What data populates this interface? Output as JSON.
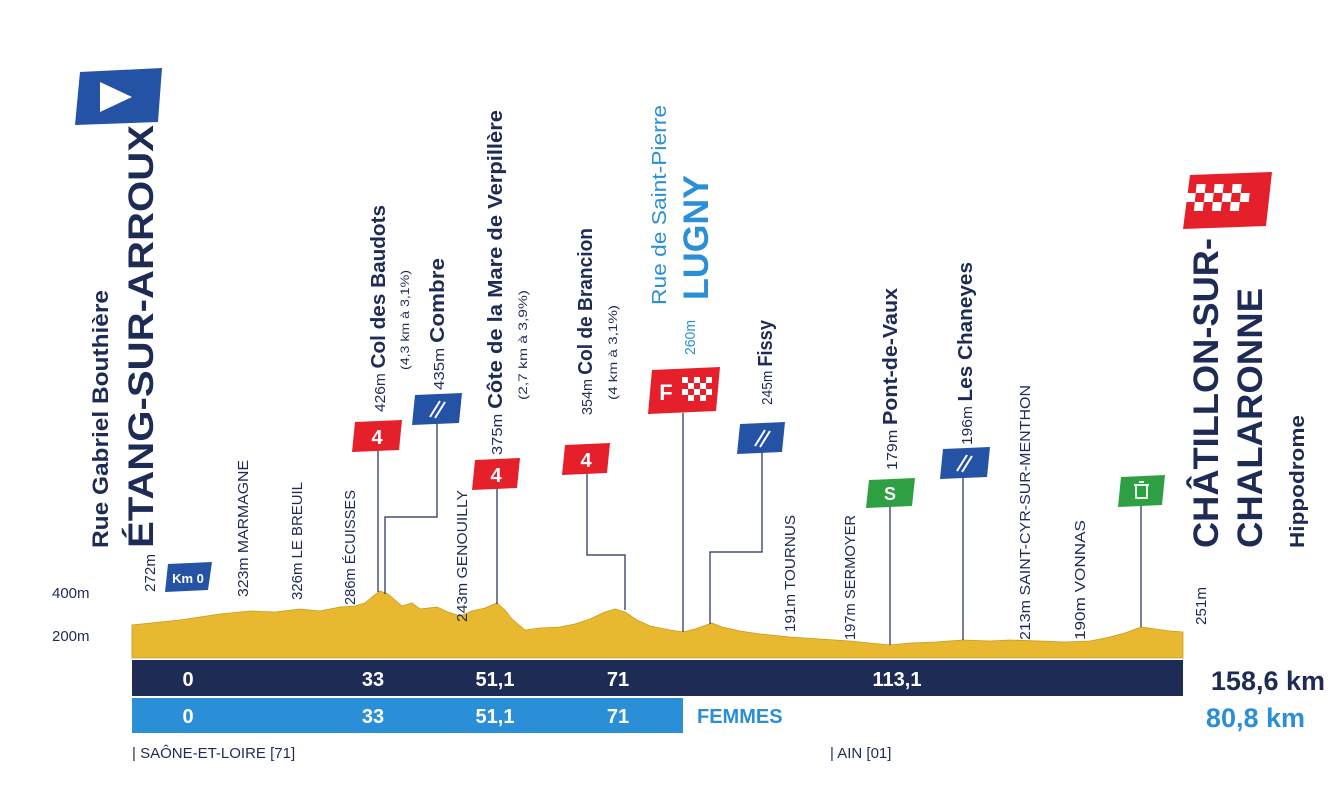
{
  "start": {
    "street": "Rue Gabriel Bouthière",
    "town": "ÉTANG-SUR-ARROUX",
    "altitude": "272m",
    "km_badge": "Km 0"
  },
  "axis_labels": [
    "400m",
    "200m"
  ],
  "towns": [
    "323m MARMAGNE",
    "326m LE BREUIL",
    "286m ÉCUISSES",
    "243m GENOUILLY",
    "191m TOURNUS",
    "197m SERMOYER",
    "213m SAINT-CYR-SUR-MENTHON",
    "190m VONNAS"
  ],
  "points": [
    {
      "altitude": "426m",
      "name": "Col des Baudots",
      "detail": "(4,3 km à 3,1%)",
      "badge": "4"
    },
    {
      "altitude": "435m",
      "name": "Combre"
    },
    {
      "altitude": "375m",
      "name": "Côte de la Mare de Verpillère",
      "detail": "(2,7 km à 3,9%)",
      "badge": "4"
    },
    {
      "altitude": "354m",
      "name": "Col de Brancion",
      "detail": "(4 km à 3,1%)",
      "badge": "4"
    },
    {
      "altitude": "245m",
      "name": "Fissy"
    },
    {
      "altitude": "179m",
      "name": "Pont-de-Vaux",
      "badge": "S"
    },
    {
      "altitude": "196m",
      "name": "Les Chaneyes"
    }
  ],
  "womens_finish": {
    "street": "Rue de Saint-Pierre",
    "town": "LUGNY",
    "altitude": "260m",
    "badge": "F"
  },
  "finish": {
    "town_lines": [
      "CHÂTILLON-SUR-",
      "CHALARONNE"
    ],
    "place": "Hippodrome",
    "altitude": "251m"
  },
  "distance_bars": {
    "men": {
      "marks": [
        "0",
        "33",
        "51,1",
        "71",
        "113,1"
      ],
      "total": "158,6 km"
    },
    "women": {
      "marks": [
        "0",
        "33",
        "51,1",
        "71"
      ],
      "label": "FEMMES",
      "total": "80,8 km"
    }
  },
  "regions": [
    "| SAÔNE-ET-LOIRE [71]",
    "| AIN [01]"
  ]
}
